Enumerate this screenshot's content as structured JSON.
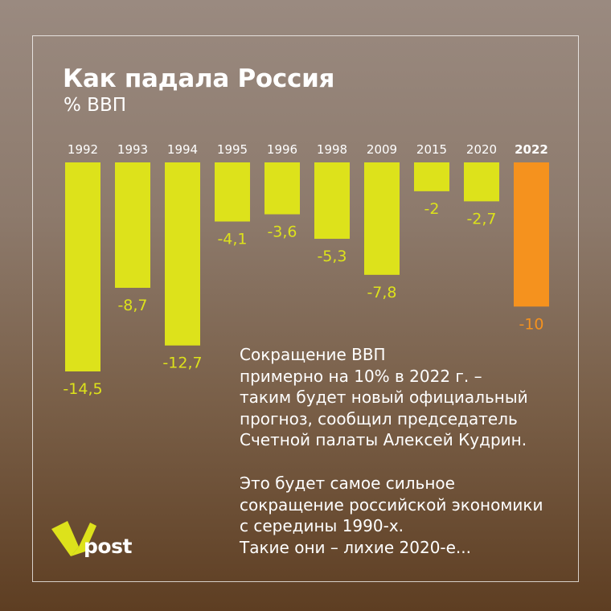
{
  "header": {
    "title": "Как падала Россия",
    "subtitle": "% ВВП"
  },
  "chart_data": {
    "type": "bar",
    "categories": [
      "1992",
      "1993",
      "1994",
      "1995",
      "1996",
      "1998",
      "2009",
      "2015",
      "2020",
      "2022"
    ],
    "values": [
      -14.5,
      -8.7,
      -12.7,
      -4.1,
      -3.6,
      -5.3,
      -7.8,
      -2,
      -2.7,
      -10
    ],
    "value_labels": [
      "-14,5",
      "-8,7",
      "-12,7",
      "-4,1",
      "-3,6",
      "-5,3",
      "-7,8",
      "-2",
      "-2,7",
      "-10"
    ],
    "highlight": "2022",
    "colors": {
      "bar": "#dde21b",
      "highlight": "#f5921e"
    },
    "ylim": [
      -14.5,
      0
    ]
  },
  "text": {
    "paragraph1": [
      "Сокращение ВВП",
      "примерно на 10% в 2022 г. –",
      "таким будет новый официальный",
      "прогноз, сообщил председатель",
      "Счетной палаты Алексей Кудрин."
    ],
    "paragraph2": [
      "Это будет самое сильное",
      "сокращение российской экономики",
      "с середины 1990-х.",
      "Такие они – лихие 2020-е..."
    ]
  },
  "logo": {
    "text": "post",
    "icon": "v-logo-icon",
    "color": "#dde21b"
  }
}
